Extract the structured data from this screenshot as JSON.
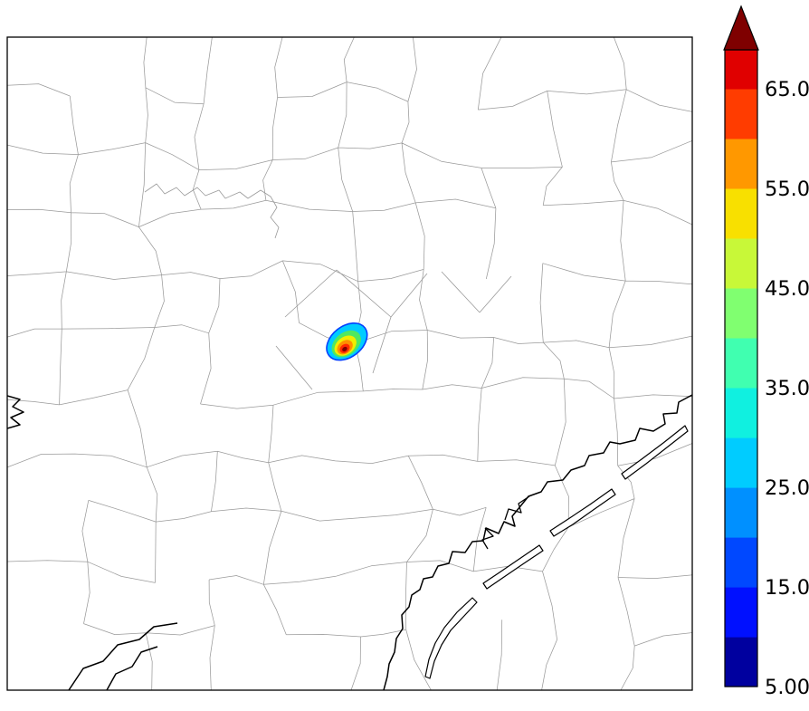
{
  "figure": {
    "kind": "concentration plume over county map",
    "background": "#ffffff",
    "frame_color": "#000000",
    "county_line_color": "#9a9a9a",
    "coast_line_color": "#000000"
  },
  "chart_data": {
    "type": "heatmap",
    "title": "",
    "xlabel": "",
    "ylabel": "",
    "legend_position": "right-colorbar",
    "grid": false,
    "colorbar": {
      "orientation": "vertical",
      "range": [
        5,
        68.9
      ],
      "over_arrow": true,
      "over_color": "#7f0000",
      "ticks": [
        {
          "value": 65,
          "label": "65.00"
        },
        {
          "value": 55,
          "label": "55.00"
        },
        {
          "value": 45,
          "label": "45.00"
        },
        {
          "value": 35,
          "label": "35.00"
        },
        {
          "value": 25,
          "label": "25.00"
        },
        {
          "value": 15,
          "label": "15.00"
        },
        {
          "value": 5,
          "label": "5.00"
        }
      ],
      "segments": [
        {
          "from": 5,
          "to": 10,
          "color": "#00009f"
        },
        {
          "from": 10,
          "to": 15,
          "color": "#0010ff"
        },
        {
          "from": 15,
          "to": 20,
          "color": "#0048ff"
        },
        {
          "from": 20,
          "to": 25,
          "color": "#0090ff"
        },
        {
          "from": 25,
          "to": 30,
          "color": "#00ccff"
        },
        {
          "from": 30,
          "to": 35,
          "color": "#10f0e0"
        },
        {
          "from": 35,
          "to": 40,
          "color": "#40ffb0"
        },
        {
          "from": 40,
          "to": 45,
          "color": "#80ff70"
        },
        {
          "from": 45,
          "to": 50,
          "color": "#c8f838"
        },
        {
          "from": 50,
          "to": 55,
          "color": "#f8e000"
        },
        {
          "from": 55,
          "to": 60,
          "color": "#ff9800"
        },
        {
          "from": 60,
          "to": 65,
          "color": "#ff3c00"
        },
        {
          "from": 65,
          "to": 68.9,
          "color": "#e00000"
        }
      ]
    },
    "plume": {
      "note": "single concentrated plume near map center, hottest core exceeds top of scale",
      "levels": [
        {
          "value": 25,
          "color": "#00ccff",
          "edge": "#0040ff"
        },
        {
          "value": 35,
          "color": "#50e860"
        },
        {
          "value": 45,
          "color": "#f0ee00"
        },
        {
          "value": 55,
          "color": "#ff9000"
        },
        {
          "value": 60,
          "color": "#ff2800"
        },
        {
          "value": 65,
          "color": "#800000"
        }
      ]
    }
  }
}
